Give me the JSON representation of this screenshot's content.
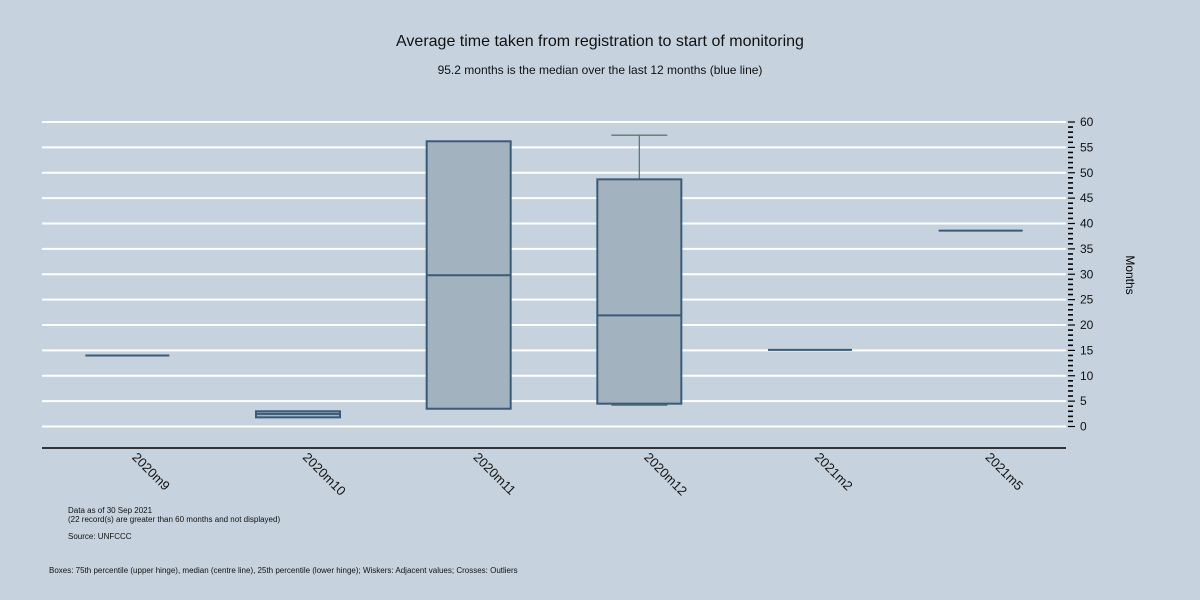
{
  "colors": {
    "background": "#c6d3df",
    "grid": "#ffffff",
    "box_fill": "#a2b3bf",
    "box_stroke": "#3a5a78",
    "whisker": "#5d7a70",
    "axis": "#000000"
  },
  "notes": {
    "data_as_of": "Data as of 30 Sep 2021",
    "records_note": "(22 record(s) are greater than 60 months and not displayed)",
    "source": "Source: UNFCCC",
    "legend_note": "Boxes: 75th percentile (upper hinge), median (centre line), 25th percentile (lower hinge); Wiskers: Adjacent values; Crosses: Outliers"
  },
  "chart_data": {
    "type": "box",
    "title": "Average time taken from registration to start of monitoring",
    "subtitle": "95.2 months is the median over the last 12 months (blue line)",
    "ylabel": "Months",
    "xlabel": "",
    "ylim": [
      0,
      60
    ],
    "yticks": [
      0,
      5,
      10,
      15,
      20,
      25,
      30,
      35,
      40,
      45,
      50,
      55,
      60
    ],
    "grid": true,
    "y_axis_position": "right",
    "categories": [
      "2020m9",
      "2020m10",
      "2020m11",
      "2020m12",
      "2021m2",
      "2021m5"
    ],
    "boxes": [
      {
        "category": "2020m9",
        "q1": 14.0,
        "median": 14.0,
        "q3": 14.0,
        "whisker_low": 14.0,
        "whisker_high": 14.0
      },
      {
        "category": "2020m10",
        "q1": 1.8,
        "median": 2.5,
        "q3": 3.0,
        "whisker_low": 1.8,
        "whisker_high": 3.0
      },
      {
        "category": "2020m11",
        "q1": 3.5,
        "median": 29.8,
        "q3": 56.2,
        "whisker_low": 3.5,
        "whisker_high": 56.2
      },
      {
        "category": "2020m12",
        "q1": 4.5,
        "median": 21.9,
        "q3": 48.7,
        "whisker_low": 4.2,
        "whisker_high": 57.4
      },
      {
        "category": "2021m2",
        "q1": 15.1,
        "median": 15.1,
        "q3": 15.1,
        "whisker_low": 15.1,
        "whisker_high": 15.1
      },
      {
        "category": "2021m5",
        "q1": 38.6,
        "median": 38.6,
        "q3": 38.6,
        "whisker_low": 38.6,
        "whisker_high": 38.6
      }
    ]
  }
}
